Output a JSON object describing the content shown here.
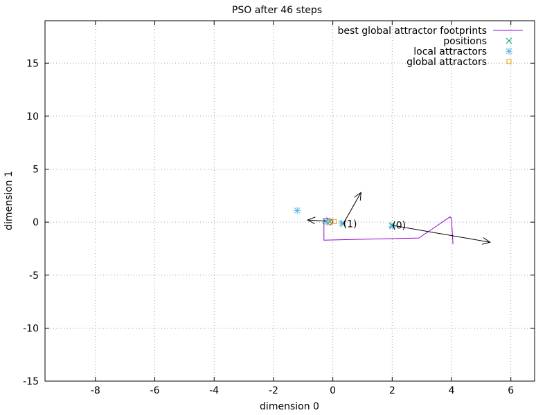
{
  "chart_data": {
    "type": "scatter",
    "title": "PSO after 46 steps",
    "xlabel": "dimension 0",
    "ylabel": "dimension 1",
    "xlim": [
      -9.7,
      6.8
    ],
    "ylim": [
      -15,
      19
    ],
    "xticks": [
      -8,
      -6,
      -4,
      -2,
      0,
      2,
      4,
      6
    ],
    "yticks": [
      -15,
      -10,
      -5,
      0,
      5,
      10,
      15
    ],
    "grid": true,
    "legend_position": "top-right",
    "colors": {
      "footprints": "#9400d3",
      "positions": "#009e73",
      "local_attractors": "#56b4e9",
      "global_attractors": "#e69f00",
      "arrows": "#000000",
      "grid": "#a0a0a0"
    },
    "series": [
      {
        "name": "best global attractor footprints",
        "style": "line",
        "points": [
          [
            4.05,
            -2.1
          ],
          [
            4.0,
            0.3
          ],
          [
            3.95,
            0.5
          ],
          [
            2.9,
            -1.5
          ],
          [
            -0.3,
            -1.7
          ],
          [
            -0.3,
            0.3
          ],
          [
            -0.2,
            0.4
          ],
          [
            -0.1,
            0.3
          ],
          [
            0.0,
            0.2
          ],
          [
            0.0,
            -0.1
          ],
          [
            -0.1,
            -0.3
          ]
        ]
      },
      {
        "name": "positions",
        "style": "marker-x",
        "points": [
          [
            2.0,
            -0.3
          ],
          [
            0.35,
            -0.15
          ],
          [
            -0.25,
            0.1
          ],
          [
            -0.1,
            0.05
          ]
        ]
      },
      {
        "name": "local attractors",
        "style": "marker-star",
        "points": [
          [
            -1.2,
            1.1
          ],
          [
            2.0,
            -0.4
          ],
          [
            0.3,
            -0.1
          ],
          [
            -0.2,
            0.0
          ]
        ]
      },
      {
        "name": "global attractors",
        "style": "marker-square",
        "points": [
          [
            -0.1,
            0.0
          ],
          [
            0.05,
            0.05
          ]
        ]
      }
    ],
    "arrows": [
      {
        "from": [
          2.0,
          -0.3
        ],
        "to": [
          5.3,
          -1.9
        ]
      },
      {
        "from": [
          0.35,
          -0.15
        ],
        "to": [
          0.95,
          2.8
        ]
      },
      {
        "from": [
          -0.25,
          0.1
        ],
        "to": [
          -0.85,
          0.2
        ]
      }
    ],
    "annotations": [
      {
        "text": "(0)",
        "x": 2.0,
        "y": -0.3
      },
      {
        "text": "(1)",
        "x": 0.35,
        "y": -0.15
      }
    ]
  }
}
